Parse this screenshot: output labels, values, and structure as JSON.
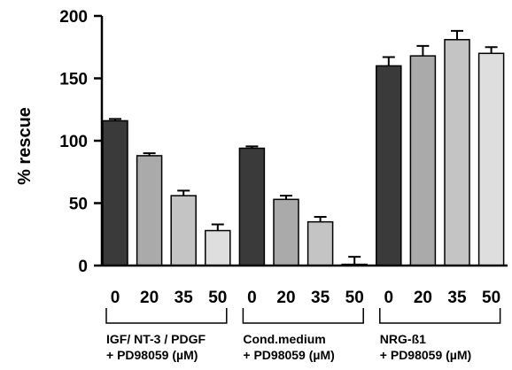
{
  "chart_data": {
    "type": "bar",
    "title": "",
    "xlabel": "",
    "ylabel": "% rescue",
    "ylim": [
      0,
      200
    ],
    "yticks": [
      0,
      50,
      100,
      150,
      200
    ],
    "grid": false,
    "colors": {
      "0": "#3a3a3a",
      "20": "#aaaaaa",
      "35": "#c4c4c4",
      "50": "#dedede",
      "axis": "#000000"
    },
    "groups": [
      {
        "label_line1": "IGF/ NT-3 / PDGF",
        "label_line2": "+ PD98059 (µM)",
        "bars": [
          {
            "x": "0",
            "value": 116,
            "error": 1.5
          },
          {
            "x": "20",
            "value": 88,
            "error": 2
          },
          {
            "x": "35",
            "value": 56,
            "error": 4
          },
          {
            "x": "50",
            "value": 28,
            "error": 5
          }
        ]
      },
      {
        "label_line1": "Cond.medium",
        "label_line2": "+ PD98059 (µM)",
        "bars": [
          {
            "x": "0",
            "value": 94,
            "error": 1.5
          },
          {
            "x": "20",
            "value": 53,
            "error": 3
          },
          {
            "x": "35",
            "value": 35,
            "error": 4
          },
          {
            "x": "50",
            "value": 1,
            "error": 6
          }
        ]
      },
      {
        "label_line1": "NRG-ß1",
        "label_line2": "+ PD98059 (µM)",
        "bars": [
          {
            "x": "0",
            "value": 160,
            "error": 7
          },
          {
            "x": "20",
            "value": 168,
            "error": 8
          },
          {
            "x": "35",
            "value": 181,
            "error": 7
          },
          {
            "x": "50",
            "value": 170,
            "error": 5
          }
        ]
      }
    ]
  }
}
